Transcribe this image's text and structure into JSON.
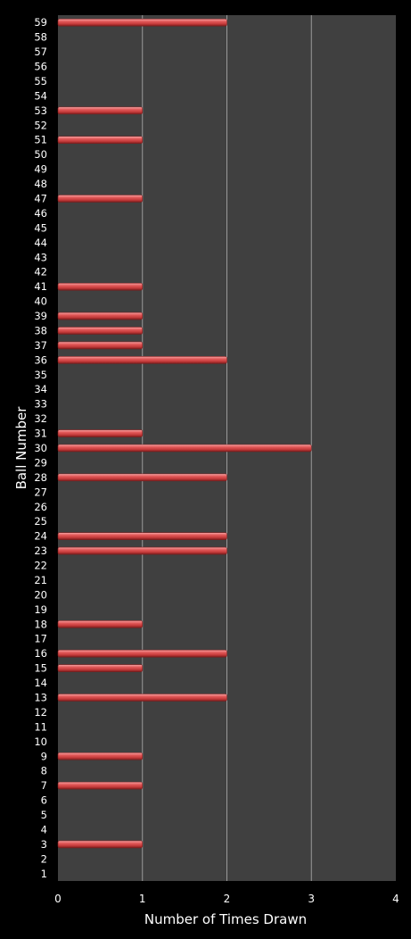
{
  "chart_data": {
    "type": "bar",
    "orientation": "horizontal",
    "title": "",
    "xlabel": "Number of Times Drawn",
    "ylabel": "Ball Number",
    "xlim": [
      0,
      4
    ],
    "xticks": [
      "0",
      "1",
      "2",
      "3",
      "4"
    ],
    "grid": true,
    "legend": "none",
    "colors": {
      "page_background": "#000000",
      "plot_background": "#404040",
      "gridline": "#9a9a9a",
      "text": "#ffffff",
      "bar": "#d94b4b",
      "bar_highlight": "#f6a7a7",
      "bar_shadow": "#7a1c1c"
    },
    "categories": [
      "1",
      "2",
      "3",
      "4",
      "5",
      "6",
      "7",
      "8",
      "9",
      "10",
      "11",
      "12",
      "13",
      "14",
      "15",
      "16",
      "17",
      "18",
      "19",
      "20",
      "21",
      "22",
      "23",
      "24",
      "25",
      "26",
      "27",
      "28",
      "29",
      "30",
      "31",
      "32",
      "33",
      "34",
      "35",
      "36",
      "37",
      "38",
      "39",
      "40",
      "41",
      "42",
      "43",
      "44",
      "45",
      "46",
      "47",
      "48",
      "49",
      "50",
      "51",
      "52",
      "53",
      "54",
      "55",
      "56",
      "57",
      "58",
      "59"
    ],
    "values": [
      0,
      0,
      1,
      0,
      0,
      0,
      1,
      0,
      1,
      0,
      0,
      0,
      2,
      0,
      1,
      2,
      0,
      1,
      0,
      0,
      0,
      0,
      2,
      2,
      0,
      0,
      0,
      2,
      0,
      3,
      1,
      0,
      0,
      0,
      0,
      2,
      1,
      1,
      1,
      0,
      1,
      0,
      0,
      0,
      0,
      0,
      1,
      0,
      0,
      0,
      1,
      0,
      1,
      0,
      0,
      0,
      0,
      0,
      2
    ]
  }
}
